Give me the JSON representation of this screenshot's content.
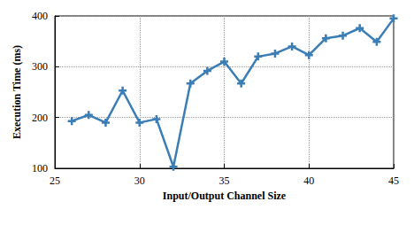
{
  "chart_data": {
    "type": "line",
    "x_label": "Input/Output Channel Size",
    "y_label": "Execution Time (ms)",
    "x": [
      26,
      27,
      28,
      29,
      30,
      31,
      32,
      33,
      34,
      35,
      36,
      37,
      38,
      39,
      40,
      41,
      42,
      43,
      44,
      45
    ],
    "values": [
      193,
      205,
      190,
      253,
      190,
      197,
      103,
      267,
      292,
      310,
      267,
      320,
      326,
      340,
      323,
      356,
      361,
      376,
      349,
      395
    ],
    "color": "#3b7db5",
    "marker": "plus",
    "line_style": "solid",
    "xlim": [
      25,
      45
    ],
    "xticks": [
      25,
      30,
      35,
      40,
      45
    ],
    "ylim": [
      100,
      400
    ],
    "yticks": [
      100,
      200,
      300,
      400
    ],
    "grid": true
  }
}
